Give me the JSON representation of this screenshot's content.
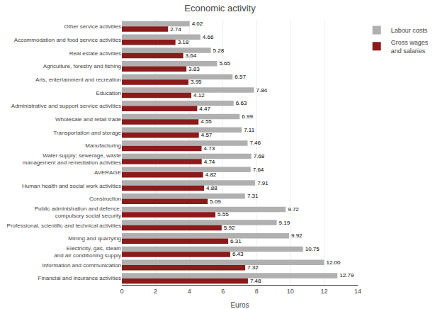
{
  "chart_data": {
    "type": "bar",
    "orientation": "horizontal",
    "title": "Economic activity",
    "x_label": "Euros",
    "categories": [
      "Other service activities",
      "Accommodation and food service activities",
      "Real estate activities",
      "Agriculture, forestry and fishing",
      "Arts, entertainment and recreation",
      "Education",
      "Administrative and support service activities",
      "Wholesale and retail trade",
      "Transportation and storage",
      "Manufacturing",
      "Water supply; sewerage, waste\nmanagement and remediation activities",
      "AVERAGE",
      "Human health and social work activities",
      "Construction",
      "Public administration and defence;\ncompulsory social security",
      "Professional, scientific and technical activities",
      "Mining and quarrying",
      "Electricity, gas, steam\nand air conditioning supply",
      "Information and communication",
      "Financial and insurance activities"
    ],
    "series": [
      {
        "name": "Labour costs",
        "color": "#b0b0b0",
        "values": [
          4.02,
          4.66,
          5.28,
          5.65,
          6.57,
          7.84,
          6.63,
          6.99,
          7.11,
          7.46,
          7.68,
          7.64,
          7.91,
          7.31,
          9.72,
          9.19,
          9.92,
          10.75,
          12.0,
          12.79
        ],
        "value_labels": [
          "4.02",
          "4.66",
          "5.28",
          "5.65",
          "6.57",
          "7.84",
          "6.63",
          "6.99",
          "7.11",
          "7.46",
          "7.68",
          "7.64",
          "7.91",
          "7.31",
          "9.72",
          "9.19",
          "9.92",
          "10.75",
          "12.00",
          "12.79"
        ]
      },
      {
        "name": "Gross wages\nand salaries",
        "color": "#8b1a1a",
        "values": [
          2.74,
          3.18,
          3.64,
          3.83,
          3.95,
          4.12,
          4.47,
          4.55,
          4.57,
          4.73,
          4.74,
          4.82,
          4.88,
          5.09,
          5.55,
          5.92,
          6.31,
          6.43,
          7.32,
          7.48
        ],
        "value_labels": [
          "2.74",
          "3.18",
          "3.64",
          "3.83",
          "3.95",
          "4.12",
          "4.47",
          "4.55",
          "4.57",
          "4.73",
          "4.74",
          "4.82",
          "4.88",
          "5.09",
          "5.55",
          "5.92",
          "6.31",
          "6.43",
          "7.32",
          "7.48"
        ]
      }
    ],
    "xlim": [
      0,
      14
    ],
    "xticks": [
      0,
      2,
      4,
      6,
      8,
      10,
      12,
      14
    ],
    "grid": true,
    "legend": "right",
    "data_labels": true
  }
}
